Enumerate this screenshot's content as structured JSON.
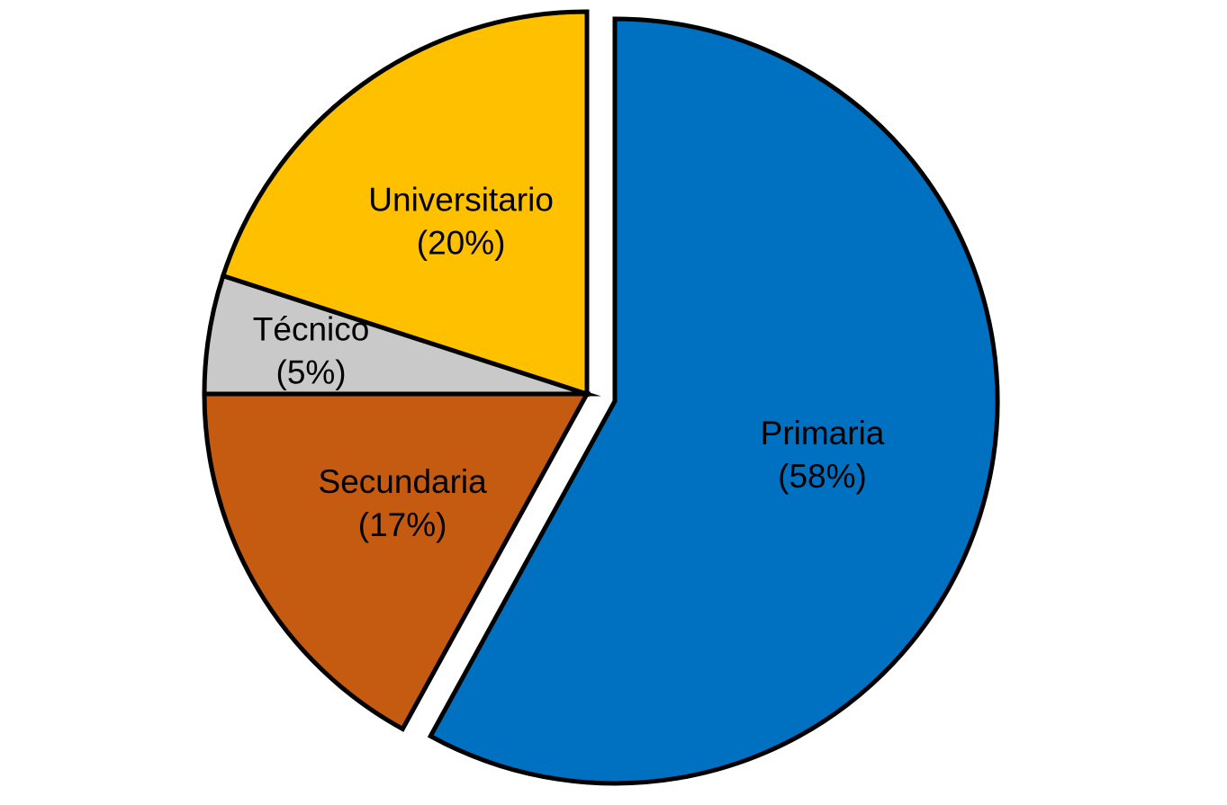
{
  "chart_data": {
    "type": "pie",
    "title": "",
    "slices": [
      {
        "label": "Primaria",
        "value": 58,
        "value_label": "(58%)",
        "color": "#0070C0",
        "exploded": true
      },
      {
        "label": "Secundaria",
        "value": 17,
        "value_label": "(17%)",
        "color": "#C55A11",
        "exploded": false
      },
      {
        "label": "Técnico",
        "value": 5,
        "value_label": "(5%)",
        "color": "#C9C9C9",
        "exploded": false
      },
      {
        "label": "Universitario",
        "value": 20,
        "value_label": "(20%)",
        "color": "#FFC000",
        "exploded": false
      }
    ],
    "start_angle_deg": 0,
    "direction": "clockwise",
    "legend": "none",
    "outline_color": "#000000"
  }
}
